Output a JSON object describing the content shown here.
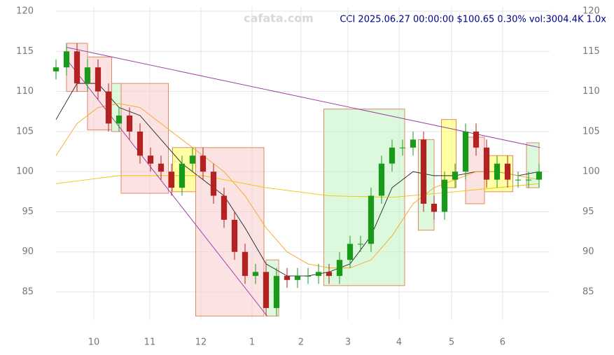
{
  "chart_data": {
    "type": "candlestick",
    "title": "CCI 2025.06.27 00:00:00 $100.65 0.30% vol:3004.4K 1.0x",
    "watermark": "cafata.com",
    "up_color": "#1a9a1a",
    "down_color": "#b22222",
    "x": [
      0,
      1,
      2,
      3,
      4,
      5,
      6,
      7,
      8,
      9,
      10,
      11,
      12,
      13,
      14,
      15,
      16,
      17,
      18,
      19,
      20,
      21,
      22,
      23,
      24,
      25,
      26,
      27,
      28,
      29,
      30,
      31,
      32,
      33,
      34,
      35,
      36,
      37,
      38,
      39,
      40,
      41,
      42,
      43,
      44,
      45,
      46
    ],
    "open": [
      112.5,
      113,
      115,
      111,
      113,
      110,
      106,
      107,
      105,
      102,
      101,
      100,
      98,
      101,
      102,
      100,
      97,
      94,
      90,
      87,
      87.5,
      83,
      87,
      86.5,
      87,
      87,
      87.5,
      87,
      89,
      91,
      91,
      97,
      101,
      103,
      103,
      104,
      96,
      95,
      99,
      100,
      105,
      103,
      99,
      101,
      99,
      99,
      99
    ],
    "high": [
      114,
      116,
      116,
      114,
      114,
      111,
      108,
      108,
      106,
      103,
      102,
      101,
      102,
      103,
      103,
      101,
      98,
      95,
      91,
      88.5,
      88.5,
      88,
      88,
      88,
      88,
      88.5,
      88.5,
      90,
      92,
      92,
      98,
      102,
      104,
      104,
      105,
      105,
      97,
      100,
      101,
      106,
      106,
      104,
      102,
      102,
      100,
      100,
      101
    ],
    "low": [
      111.5,
      112,
      110,
      110,
      109,
      105,
      105,
      104,
      101,
      100,
      99,
      97,
      97,
      100,
      99,
      96,
      93,
      89,
      86,
      86,
      82,
      82,
      85.5,
      85.5,
      86,
      86,
      86,
      86,
      88,
      90,
      90,
      96,
      100,
      102,
      102,
      95,
      94,
      94,
      98,
      99,
      102,
      98,
      98,
      98,
      98,
      98,
      98
    ],
    "close": [
      113,
      115,
      111,
      113,
      110,
      106,
      107,
      105,
      102,
      101,
      100,
      98,
      101,
      102,
      100,
      97,
      94,
      90,
      87,
      87.5,
      83,
      87,
      86.5,
      87,
      87,
      87.5,
      87,
      89,
      91,
      91,
      97,
      101,
      103,
      103,
      104,
      96,
      95,
      99,
      100,
      105,
      103,
      99,
      101,
      99,
      99,
      99,
      100
    ],
    "lines": [
      {
        "color": "#222222",
        "x": [
          0,
          2,
          4,
          6,
          8,
          10,
          12,
          14,
          16,
          18,
          20,
          22,
          24,
          26,
          28,
          30,
          32,
          34,
          36,
          38,
          40,
          42,
          44,
          46
        ],
        "values": [
          106.5,
          111,
          111,
          108,
          107,
          104,
          101,
          99,
          97,
          93,
          88.5,
          87,
          87,
          87.5,
          88.5,
          92,
          98,
          100,
          99.5,
          99.5,
          100,
          100,
          99.5,
          100
        ]
      },
      {
        "color": "#f5a623",
        "x": [
          0,
          2,
          4,
          6,
          8,
          10,
          12,
          14,
          16,
          18,
          20,
          22,
          24,
          26,
          28,
          30,
          32,
          34,
          36,
          38,
          40,
          42,
          44,
          46
        ],
        "values": [
          102,
          106,
          108,
          108.5,
          108,
          106,
          104,
          102,
          100,
          97,
          93,
          90,
          88.5,
          88,
          88,
          89,
          92,
          96,
          98,
          99,
          100,
          100,
          99.5,
          99
        ]
      },
      {
        "color": "#f2c200",
        "x": [
          0,
          6,
          14,
          20,
          26,
          32,
          38,
          46
        ],
        "values": [
          98.5,
          99.5,
          99.5,
          98,
          97,
          96.8,
          97.5,
          98.5
        ]
      },
      {
        "color": "#9b30a8",
        "x": [
          1,
          46.1
        ],
        "values": [
          115.5,
          103
        ]
      },
      {
        "color": "#9b30a8",
        "x": [
          1,
          20.1
        ],
        "values": [
          114,
          82
        ]
      }
    ],
    "zones": [
      {
        "color": "#f9d0d0",
        "x": [
          1,
          3
        ],
        "y": [
          110,
          116
        ]
      },
      {
        "color": "#f9d0d0",
        "x": [
          3,
          5.3
        ],
        "y": [
          105.2,
          114.3
        ]
      },
      {
        "color": "#c6f5c6",
        "x": [
          5.3,
          6.2
        ],
        "y": [
          105,
          111
        ]
      },
      {
        "color": "#f9d0d0",
        "x": [
          6.2,
          10.7
        ],
        "y": [
          97.3,
          111
        ]
      },
      {
        "color": "#ffff66",
        "x": [
          11.1,
          13.3
        ],
        "y": [
          97.5,
          103
        ]
      },
      {
        "color": "#f9d0d0",
        "x": [
          13.3,
          19.8
        ],
        "y": [
          82,
          103
        ]
      },
      {
        "color": "#c6f5c6",
        "x": [
          20,
          21.2
        ],
        "y": [
          82,
          89
        ]
      },
      {
        "color": "#c6f5c6",
        "x": [
          25.5,
          33.2
        ],
        "y": [
          85.8,
          107.8
        ]
      },
      {
        "color": "#c6f5c6",
        "x": [
          34.5,
          36
        ],
        "y": [
          92.7,
          104
        ]
      },
      {
        "color": "#ffff66",
        "x": [
          36.7,
          38.1
        ],
        "y": [
          98,
          106.5
        ]
      },
      {
        "color": "#f9d0d0",
        "x": [
          39,
          40.8
        ],
        "y": [
          96,
          104.3
        ]
      },
      {
        "color": "#ffff66",
        "x": [
          40.8,
          43.5
        ],
        "y": [
          97.5,
          102
        ]
      },
      {
        "color": "#c6f5c6",
        "x": [
          44.8,
          46
        ],
        "y": [
          98,
          103.6
        ]
      }
    ],
    "xlim": [
      0,
      47
    ],
    "xticks": [
      {
        "value": 3.6,
        "label": "10"
      },
      {
        "value": 8.93,
        "label": "11"
      },
      {
        "value": 13.8,
        "label": "12"
      },
      {
        "value": 18.67,
        "label": "1"
      },
      {
        "value": 23.33,
        "label": "2"
      },
      {
        "value": 27.8,
        "label": "3"
      },
      {
        "value": 32.67,
        "label": "4"
      },
      {
        "value": 37.67,
        "label": "5"
      },
      {
        "value": 42.53,
        "label": "6"
      }
    ],
    "ylim": [
      81.5,
      120.5
    ],
    "yticks": [
      85,
      90,
      95,
      100,
      105,
      110,
      115,
      120
    ],
    "grid": true
  }
}
